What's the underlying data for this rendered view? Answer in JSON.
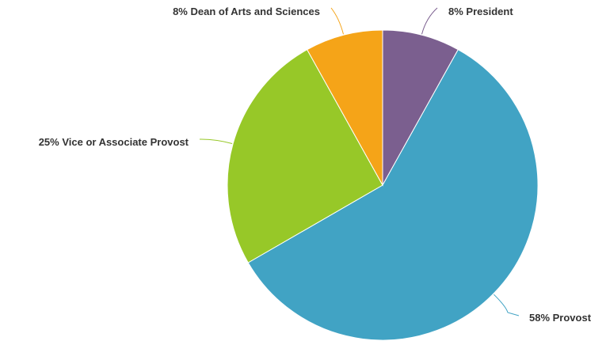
{
  "chart_data": {
    "type": "pie",
    "title": "",
    "start_angle_deg": 0,
    "direction": "clockwise",
    "slices": [
      {
        "label": "8% President",
        "value": 8,
        "color": "#7b5f8f"
      },
      {
        "label": "58% Provost",
        "value": 58,
        "color": "#41a3c4"
      },
      {
        "label": "25% Vice or Associate Provost",
        "value": 25,
        "color": "#97c828"
      },
      {
        "label": "8% Dean of Arts and Sciences",
        "value": 8,
        "color": "#f5a418"
      }
    ]
  }
}
